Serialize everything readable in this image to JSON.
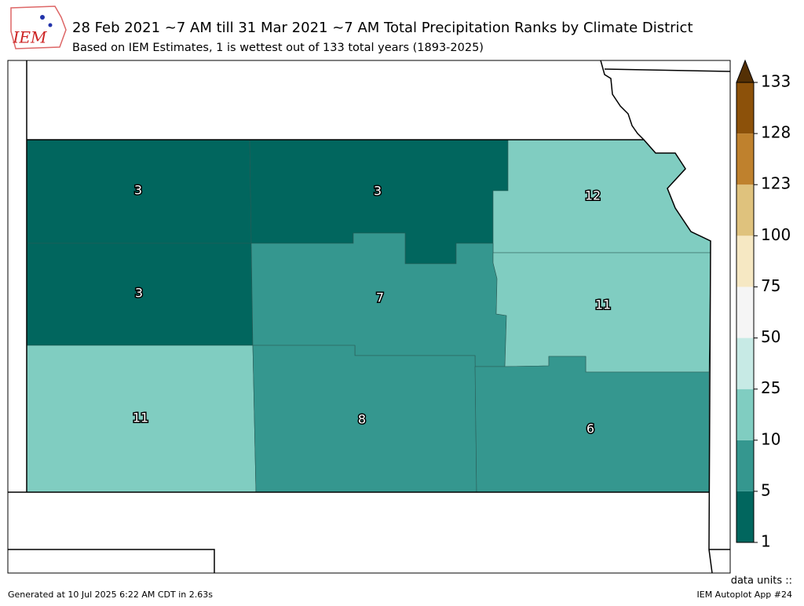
{
  "header": {
    "logo": "IEM",
    "title": "28 Feb 2021 ~7 AM till 31 Mar 2021 ~7 AM Total Precipitation Ranks by Climate District",
    "subtitle": "Based on IEM Estimates, 1 is wettest out of 133 total years (1893-2025)"
  },
  "map": {
    "districts": [
      {
        "rank": 3
      },
      {
        "rank": 3
      },
      {
        "rank": 12
      },
      {
        "rank": 3
      },
      {
        "rank": 7
      },
      {
        "rank": 11
      },
      {
        "rank": 11
      },
      {
        "rank": 8
      },
      {
        "rank": 6
      }
    ]
  },
  "colorbar": {
    "ticks": [
      1,
      5,
      10,
      25,
      50,
      75,
      100,
      123,
      128,
      133
    ],
    "colors": [
      "#01665e",
      "#35978f",
      "#80cdc1",
      "#c7eae5",
      "#f5f5f5",
      "#f6e8c3",
      "#dfc27d",
      "#bf812d",
      "#8c510a"
    ],
    "extend_color": "#543005"
  },
  "footer": {
    "generated": "Generated at 10 Jul 2025 6:22 AM CDT in 2.63s",
    "units": "data units ::",
    "app": "IEM Autoplot App #24"
  }
}
